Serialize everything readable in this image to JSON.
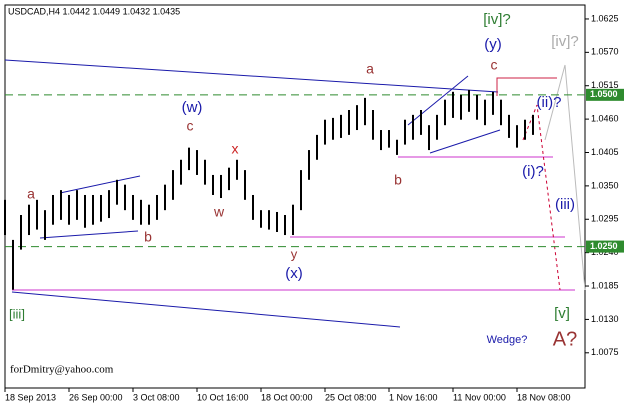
{
  "chart_data": {
    "type": "ohlc-bars",
    "title": "USDCAD,H4  1.0442 1.0449 1.0432 1.0435",
    "watermark": "forDmitry@yahoo.com",
    "color": "#000000",
    "xlim": [
      0,
      72.5
    ],
    "ylim": [
      1.0017,
      1.0648
    ],
    "xticks": [
      {
        "value": 0,
        "label": "18 Sep 2013"
      },
      {
        "value": 8,
        "label": "26 Sep 00:00"
      },
      {
        "value": 16,
        "label": "3 Oct 08:00"
      },
      {
        "value": 24,
        "label": "10 Oct 16:00"
      },
      {
        "value": 32,
        "label": "18 Oct 00:00"
      },
      {
        "value": 40,
        "label": "25 Oct 08:00"
      },
      {
        "value": 48,
        "label": "1 Nov 16:00"
      },
      {
        "value": 56,
        "label": "11 Nov 00:00"
      },
      {
        "value": 64,
        "label": "18 Nov 08:00"
      }
    ],
    "yticks": [
      {
        "value": 1.0625,
        "label": "1.0625"
      },
      {
        "value": 1.057,
        "label": "1.0570"
      },
      {
        "value": 1.0515,
        "label": "1.0515"
      },
      {
        "value": 1.046,
        "label": "1.0460"
      },
      {
        "value": 1.0405,
        "label": "1.0405"
      },
      {
        "value": 1.035,
        "label": "1.0350"
      },
      {
        "value": 1.0295,
        "label": "1.0295"
      },
      {
        "value": 1.024,
        "label": "1.0240"
      },
      {
        "value": 1.0185,
        "label": "1.0185"
      },
      {
        "value": 1.013,
        "label": "1.0130"
      },
      {
        "value": 1.0075,
        "label": "1.0075"
      }
    ],
    "levels": [
      {
        "value": 1.05,
        "label": "1.0500",
        "color": "#2e8b2e"
      },
      {
        "value": 1.025,
        "label": "1.0250",
        "color": "#2e8b2e"
      }
    ],
    "highs": [
      1.0327,
      1.0261,
      1.0302,
      1.0319,
      1.0327,
      1.031,
      1.0335,
      1.0343,
      1.0335,
      1.0343,
      1.0335,
      1.0335,
      1.0335,
      1.0343,
      1.036,
      1.0352,
      1.0335,
      1.0327,
      1.0319,
      1.0335,
      1.0352,
      1.0376,
      1.0393,
      1.0413,
      1.0409,
      1.0393,
      1.0368,
      1.0368,
      1.038,
      1.0393,
      1.0376,
      1.0335,
      1.031,
      1.031,
      1.0307,
      1.0302,
      1.0319,
      1.0376,
      1.0409,
      1.0434,
      1.0459,
      1.0462,
      1.0467,
      1.0475,
      1.0483,
      1.0495,
      1.0475,
      1.0442,
      1.0442,
      1.0426,
      1.0459,
      1.0467,
      1.0475,
      1.045,
      1.0467,
      1.0492,
      1.0505,
      1.05,
      1.0508,
      1.05,
      1.0492,
      1.0505,
      1.0492,
      1.0467,
      1.045,
      1.0459,
      1.0467
    ],
    "lows": [
      1.0269,
      1.0179,
      1.0245,
      1.0269,
      1.0278,
      1.0261,
      1.0286,
      1.0294,
      1.0286,
      1.0294,
      1.0281,
      1.0286,
      1.0291,
      1.0297,
      1.0319,
      1.031,
      1.0294,
      1.0286,
      1.0286,
      1.0294,
      1.031,
      1.0327,
      1.0352,
      1.0376,
      1.0368,
      1.0352,
      1.0335,
      1.033,
      1.0343,
      1.036,
      1.0327,
      1.0294,
      1.0281,
      1.0278,
      1.0274,
      1.0269,
      1.0269,
      1.031,
      1.036,
      1.0393,
      1.0418,
      1.0426,
      1.0429,
      1.0434,
      1.0442,
      1.045,
      1.0426,
      1.0409,
      1.0413,
      1.0401,
      1.0418,
      1.0426,
      1.0434,
      1.0409,
      1.0426,
      1.045,
      1.0462,
      1.0459,
      1.0472,
      1.0459,
      1.045,
      1.0467,
      1.045,
      1.0429,
      1.0413,
      1.0426,
      1.0434
    ],
    "annotations": [
      {
        "text": "a",
        "color": "#993333"
      },
      {
        "text": "b",
        "color": "#993333"
      },
      {
        "text": "c",
        "color": "#993333"
      },
      {
        "text": "x",
        "color": "#cc2222"
      },
      {
        "text": "w",
        "color": "#993333"
      },
      {
        "text": "y",
        "color": "#993333"
      },
      {
        "text": "(x)",
        "color": "#1a1aaa"
      },
      {
        "text": "(w)",
        "color": "#1a1aaa"
      },
      {
        "text": "a",
        "color": "#993333"
      },
      {
        "text": "b",
        "color": "#993333"
      },
      {
        "text": "c",
        "color": "#993333"
      },
      {
        "text": "[iv]?",
        "color": "#2e7d32"
      },
      {
        "text": "(y)",
        "color": "#1a1aaa"
      },
      {
        "text": "[iv]?",
        "color": "#aaaaaa"
      },
      {
        "text": "(ii)?",
        "color": "#1a1aaa"
      },
      {
        "text": "(i)?",
        "color": "#1a1aaa"
      },
      {
        "text": "(iii)",
        "color": "#1a1aaa"
      },
      {
        "text": "[v]",
        "color": "#2e7d32"
      },
      {
        "text": "A?",
        "color": "#993333"
      },
      {
        "text": "[iii]",
        "color": "#2e7d32"
      },
      {
        "text": "Wedge?",
        "color": "#1a1aaa"
      }
    ]
  }
}
